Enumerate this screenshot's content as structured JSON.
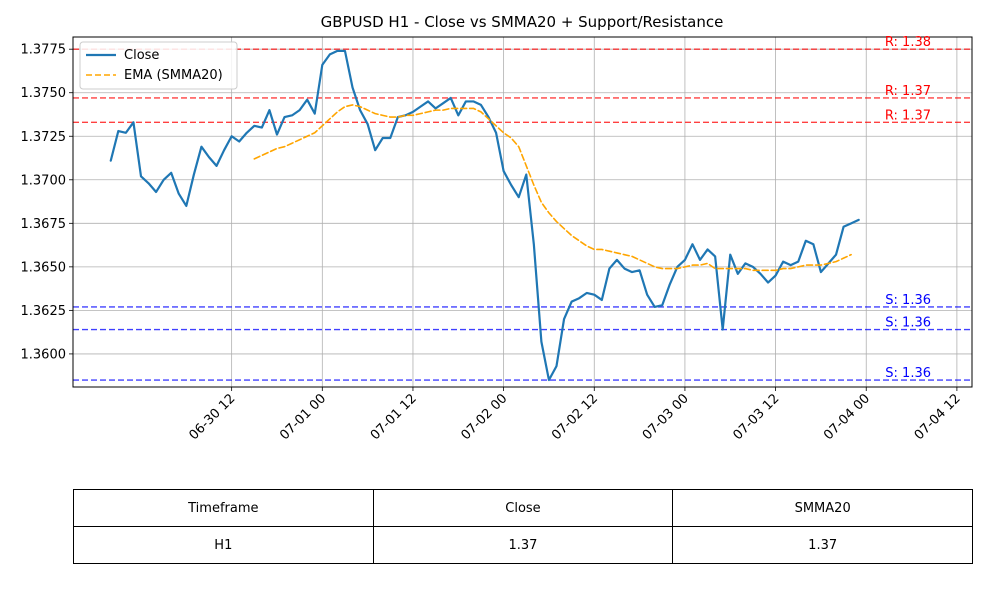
{
  "chart_data": {
    "type": "line",
    "title": "GBPUSD H1 - Close vs SMMA20 + Support/Resistance",
    "xlabel": "",
    "ylabel": "",
    "x_start": "2025-06-29 20:00",
    "x_step_hours": 1,
    "x_ticks": [
      {
        "t": "2025-06-30 12:00",
        "label": "06-30 12"
      },
      {
        "t": "2025-07-01 00:00",
        "label": "07-01 00"
      },
      {
        "t": "2025-07-01 12:00",
        "label": "07-01 12"
      },
      {
        "t": "2025-07-02 00:00",
        "label": "07-02 00"
      },
      {
        "t": "2025-07-02 12:00",
        "label": "07-02 12"
      },
      {
        "t": "2025-07-03 00:00",
        "label": "07-03 00"
      },
      {
        "t": "2025-07-03 12:00",
        "label": "07-03 12"
      },
      {
        "t": "2025-07-04 00:00",
        "label": "07-04 00"
      },
      {
        "t": "2025-07-04 12:00",
        "label": "07-04 12"
      }
    ],
    "xlim": [
      "2025-06-29 15:00",
      "2025-07-04 14:00"
    ],
    "ylim": [
      1.3581,
      1.3782
    ],
    "y_ticks": [
      1.36,
      1.3625,
      1.365,
      1.3675,
      1.37,
      1.3725,
      1.375,
      1.3775
    ],
    "y_tick_labels": [
      "1.3600",
      "1.3625",
      "1.3650",
      "1.3675",
      "1.3700",
      "1.3725",
      "1.3750",
      "1.3775"
    ],
    "grid": true,
    "legend_position": "top-left",
    "series": [
      {
        "name": "Close",
        "color": "#1f77b4",
        "style": "solid",
        "start_index": 0,
        "values": [
          1.3711,
          1.3728,
          1.3727,
          1.3733,
          1.3702,
          1.3698,
          1.3693,
          1.37,
          1.3704,
          1.3692,
          1.3685,
          1.3703,
          1.3719,
          1.3713,
          1.3708,
          1.3717,
          1.3725,
          1.3722,
          1.3727,
          1.3731,
          1.373,
          1.374,
          1.3726,
          1.3736,
          1.3737,
          1.374,
          1.3746,
          1.3738,
          1.3766,
          1.3772,
          1.3774,
          1.3774,
          1.3753,
          1.374,
          1.3732,
          1.3717,
          1.3724,
          1.3724,
          1.3736,
          1.3737,
          1.3739,
          1.3742,
          1.3745,
          1.3741,
          1.3744,
          1.3747,
          1.3737,
          1.3745,
          1.3745,
          1.3743,
          1.3736,
          1.3727,
          1.3705,
          1.3697,
          1.369,
          1.3703,
          1.3663,
          1.3607,
          1.3585,
          1.3593,
          1.362,
          1.363,
          1.3632,
          1.3635,
          1.3634,
          1.3631,
          1.3649,
          1.3654,
          1.3649,
          1.3647,
          1.3648,
          1.3634,
          1.3627,
          1.3628,
          1.364,
          1.365,
          1.3654,
          1.3663,
          1.3654,
          1.366,
          1.3656,
          1.3614,
          1.3657,
          1.3646,
          1.3652,
          1.365,
          1.3646,
          1.3641,
          1.3645,
          1.3653,
          1.3651,
          1.3653,
          1.3665,
          1.3663,
          1.3647,
          1.3652,
          1.3657,
          1.3673,
          1.3675,
          1.3677
        ]
      },
      {
        "name": "EMA (SMMA20)",
        "color": "#ffa500",
        "style": "dashed",
        "start_index": 19,
        "values": [
          1.3712,
          1.3714,
          1.3716,
          1.3718,
          1.3719,
          1.3721,
          1.3723,
          1.3725,
          1.3727,
          1.3731,
          1.3735,
          1.3739,
          1.3742,
          1.3743,
          1.3742,
          1.374,
          1.3738,
          1.3737,
          1.3736,
          1.3736,
          1.3737,
          1.3737,
          1.3738,
          1.3739,
          1.374,
          1.374,
          1.3741,
          1.3741,
          1.3741,
          1.3741,
          1.3739,
          1.3735,
          1.3731,
          1.3727,
          1.3724,
          1.3719,
          1.3708,
          1.3697,
          1.3687,
          1.3681,
          1.3676,
          1.3672,
          1.3668,
          1.3665,
          1.3662,
          1.366,
          1.366,
          1.3659,
          1.3658,
          1.3657,
          1.3656,
          1.3654,
          1.3652,
          1.365,
          1.3649,
          1.3649,
          1.3649,
          1.365,
          1.3651,
          1.3651,
          1.3652,
          1.3649,
          1.3649,
          1.3649,
          1.3649,
          1.3649,
          1.3648,
          1.3648,
          1.3648,
          1.3648,
          1.3649,
          1.3649,
          1.365,
          1.3651,
          1.3651,
          1.3651,
          1.3652,
          1.3653,
          1.3655,
          1.3657
        ]
      }
    ],
    "resistance": [
      {
        "value": 1.3775,
        "label": "R: 1.38"
      },
      {
        "value": 1.3747,
        "label": "R: 1.37"
      },
      {
        "value": 1.3733,
        "label": "R: 1.37"
      }
    ],
    "support": [
      {
        "value": 1.3627,
        "label": "S: 1.36"
      },
      {
        "value": 1.3614,
        "label": "S: 1.36"
      },
      {
        "value": 1.3585,
        "label": "S: 1.36"
      }
    ],
    "resistance_color": "#ff0000",
    "support_color": "#0000ff"
  },
  "summary_table": {
    "headers": [
      "Timeframe",
      "Close",
      "SMMA20"
    ],
    "row": [
      "H1",
      "1.37",
      "1.37"
    ]
  }
}
